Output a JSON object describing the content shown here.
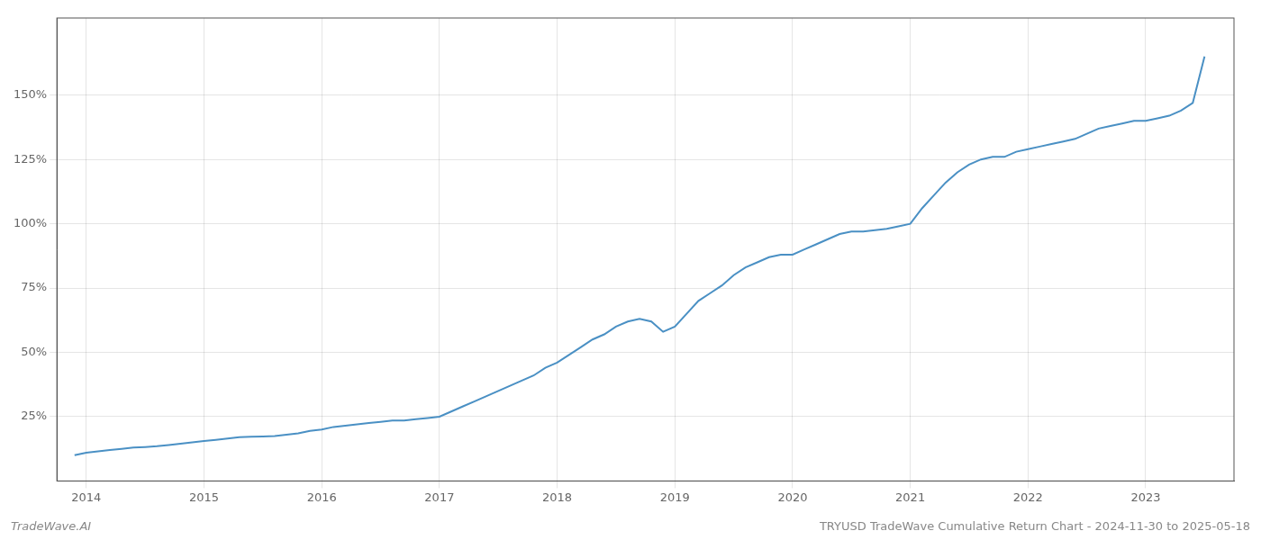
{
  "chart_data": {
    "type": "line",
    "title": "TRYUSD TradeWave Cumulative Return Chart - 2024-11-30 to 2025-05-18",
    "annotations": [
      {
        "text": "TradeWave.AI"
      }
    ],
    "x": [
      2013.9,
      2014.0,
      2014.1,
      2014.2,
      2014.3,
      2014.4,
      2014.5,
      2014.6,
      2014.7,
      2014.8,
      2014.9,
      2015.0,
      2015.1,
      2015.2,
      2015.3,
      2015.4,
      2015.5,
      2015.6,
      2015.7,
      2015.8,
      2015.9,
      2016.0,
      2016.1,
      2016.2,
      2016.3,
      2016.4,
      2016.5,
      2016.6,
      2016.7,
      2016.8,
      2016.9,
      2017.0,
      2017.1,
      2017.2,
      2017.3,
      2017.4,
      2017.5,
      2017.6,
      2017.7,
      2017.8,
      2017.9,
      2018.0,
      2018.1,
      2018.2,
      2018.3,
      2018.4,
      2018.5,
      2018.6,
      2018.7,
      2018.8,
      2018.9,
      2019.0,
      2019.1,
      2019.2,
      2019.3,
      2019.4,
      2019.5,
      2019.6,
      2019.7,
      2019.8,
      2019.9,
      2020.0,
      2020.1,
      2020.2,
      2020.3,
      2020.4,
      2020.5,
      2020.6,
      2020.7,
      2020.8,
      2020.9,
      2021.0,
      2021.1,
      2021.2,
      2021.3,
      2021.4,
      2021.5,
      2021.6,
      2021.7,
      2021.8,
      2021.9,
      2022.0,
      2022.1,
      2022.2,
      2022.3,
      2022.4,
      2022.5,
      2022.6,
      2022.7,
      2022.8,
      2022.9,
      2023.0,
      2023.1,
      2023.2,
      2023.3,
      2023.4,
      2023.5
    ],
    "values": [
      10,
      11,
      11.5,
      12,
      12.5,
      13,
      13.2,
      13.5,
      14,
      14.5,
      15,
      15.5,
      16,
      16.5,
      17,
      17.2,
      17.3,
      17.5,
      18,
      18.5,
      19.5,
      20,
      21,
      21.5,
      22,
      22.5,
      23,
      23.5,
      23.5,
      24,
      24.5,
      25,
      27,
      29,
      31,
      33,
      35,
      37,
      39,
      41,
      44,
      46,
      49,
      52,
      55,
      57,
      60,
      62,
      63,
      62,
      58,
      60,
      65,
      70,
      73,
      76,
      80,
      83,
      85,
      87,
      88,
      88,
      90,
      92,
      94,
      96,
      97,
      97,
      97.5,
      98,
      99,
      100,
      106,
      111,
      116,
      120,
      123,
      125,
      126,
      126,
      128,
      129,
      130,
      131,
      132,
      133,
      135,
      137,
      138,
      139,
      140,
      140,
      141,
      142,
      144,
      147,
      165
    ],
    "color": "#4a90c4",
    "xlim": [
      2013.75,
      2023.75
    ],
    "xticks": [
      2014,
      2015,
      2016,
      2017,
      2018,
      2019,
      2020,
      2021,
      2022,
      2023
    ],
    "ylim": [
      0,
      180
    ],
    "yticks": [
      {
        "value": 25,
        "label": "25%"
      },
      {
        "value": 50,
        "label": "50%"
      },
      {
        "value": 75,
        "label": "75%"
      },
      {
        "value": 100,
        "label": "100%"
      },
      {
        "value": 125,
        "label": "125%"
      },
      {
        "value": 150,
        "label": "150%"
      }
    ],
    "grid": true
  }
}
